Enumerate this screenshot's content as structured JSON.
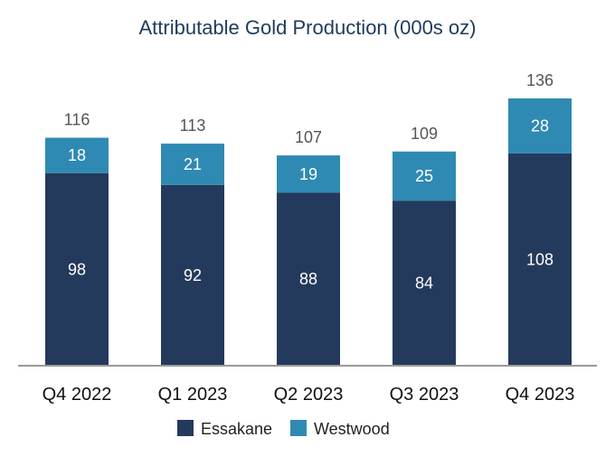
{
  "chart_data": {
    "type": "bar",
    "stacked": true,
    "title": "Attributable Gold Production (000s oz)",
    "xlabel": "",
    "ylabel": "",
    "categories": [
      "Q4 2022",
      "Q1 2023",
      "Q2 2023",
      "Q3 2023",
      "Q4 2023"
    ],
    "series": [
      {
        "name": "Essakane",
        "values": [
          98,
          92,
          88,
          84,
          108
        ],
        "color": "#243a5c"
      },
      {
        "name": "Westwood",
        "values": [
          18,
          21,
          19,
          25,
          28
        ],
        "color": "#2e8ab3"
      }
    ],
    "totals": [
      116,
      113,
      107,
      109,
      136
    ],
    "ylim": [
      0,
      136
    ],
    "grid": false,
    "legend_position": "bottom",
    "colors": {
      "title": "#1f3b5c",
      "axis": "#999999",
      "total_label": "#555555",
      "bar_label": "#ffffff"
    }
  }
}
